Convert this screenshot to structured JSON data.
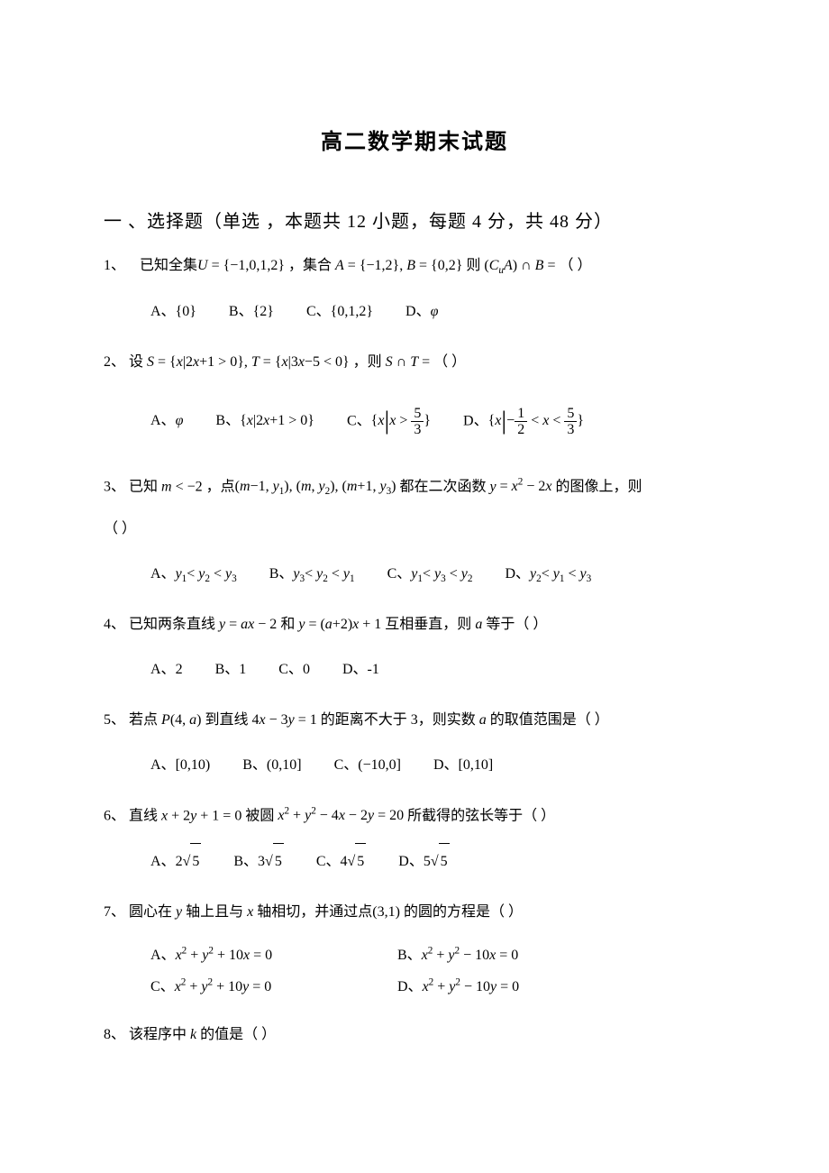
{
  "document": {
    "title": "高二数学期末试题",
    "section_heading": "一 、选择题（单选 ，本题共 12 小题，每题 4 分，共 48 分）",
    "questions": [
      {
        "num": "1、",
        "stem_prefix": "已知全集",
        "stem_math_U": "U = {−1,0,1,2}",
        "stem_mid1": "，集合",
        "stem_math_AB": "A = {−1,2}, B = {0,2}",
        "stem_mid2": " 则 ",
        "stem_math_result": "(CᵤA) ∩ B =",
        "stem_suffix": "（  ）",
        "options": {
          "A": "A、 {0}",
          "B": "B、 {2}",
          "C": "C、 {0,1,2}",
          "D": "D、 φ"
        }
      },
      {
        "num": "2、",
        "stem_prefix": "设 ",
        "stem_math_ST": "S = {x|2x+1 > 0}, T = {x|3x−5 < 0}",
        "stem_mid": "，则 ",
        "stem_math_result": "S ∩ T =",
        "stem_suffix": "（  ）",
        "options": {
          "A": "A、 φ",
          "B": "B、 {x|2x+1 > 0}",
          "C_prefix": "C、 ",
          "C_set": "{x | x > 5/3}",
          "D_prefix": "D、 ",
          "D_set": "{x | −1/2 < x < 5/3}"
        }
      },
      {
        "num": "3、",
        "stem_prefix": "已知 ",
        "stem_math_m": "m < −2",
        "stem_mid1": " ，点",
        "stem_math_points": "(m−1, y₁), (m, y₂), (m+1, y₃)",
        "stem_mid2": " 都在二次函数 ",
        "stem_math_func": "y = x² − 2x",
        "stem_suffix1": " 的图像上，则",
        "stem_suffix2": "（  ）",
        "options": {
          "A": "A、 y₁ < y₂ < y₃",
          "B": "B、 y₃ < y₂ < y₁",
          "C": "C、 y₁ < y₃ < y₂",
          "D": "D、 y₂ < y₁ < y₃"
        }
      },
      {
        "num": "4、",
        "stem_prefix": "已知两条直线 ",
        "stem_math_l1": "y = ax − 2",
        "stem_mid1": " 和 ",
        "stem_math_l2": "y = (a+2)x + 1",
        "stem_mid2": " 互相垂直，则 ",
        "stem_var": "a",
        "stem_suffix": " 等于（  ）",
        "options": {
          "A": "A、 2",
          "B": "B、 1",
          "C": "C、 0",
          "D": "D、 -1"
        }
      },
      {
        "num": "5、",
        "stem_prefix": "若点 ",
        "stem_math_P": "P(4, a)",
        "stem_mid1": " 到直线 ",
        "stem_math_line": "4x − 3y = 1",
        "stem_mid2": " 的距离不大于 3，则实数 ",
        "stem_var": "a",
        "stem_suffix": " 的取值范围是（  ）",
        "options": {
          "A": "A、 [0,10)",
          "B": "B、 (0,10]",
          "C": "C、 (−10,0]",
          "D": "D、 [0,10]"
        }
      },
      {
        "num": "6、",
        "stem_prefix": "直线 ",
        "stem_math_line": "x + 2y + 1 = 0",
        "stem_mid1": " 被圆 ",
        "stem_math_circle": "x² + y² − 4x − 2y = 20",
        "stem_suffix": " 所截得的弦长等于（   ）",
        "options": {
          "A": "A、 2√5",
          "B": "B、 3√5",
          "C": "C、 4√5",
          "D": "D、 5√5"
        }
      },
      {
        "num": "7、",
        "stem_prefix": "圆心在 ",
        "stem_var_y": "y",
        "stem_mid1": " 轴上且与 ",
        "stem_var_x": "x",
        "stem_mid2": " 轴相切，并通过点",
        "stem_math_pt": "(3,1)",
        "stem_suffix": " 的圆的方程是（   ）",
        "options": {
          "A": "A、 x² + y² + 10x = 0",
          "B": "B、 x² + y² − 10x = 0",
          "C": "C、 x² + y² + 10y = 0",
          "D": "D、 x² + y² − 10y = 0"
        }
      },
      {
        "num": "8、",
        "stem_prefix": "该程序中 ",
        "stem_var": "k",
        "stem_suffix": " 的值是（  ）"
      }
    ]
  },
  "style": {
    "background_color": "#ffffff",
    "text_color": "#000000",
    "title_fontsize": 24,
    "heading_fontsize": 20,
    "body_fontsize": 16,
    "font_family": "SimSun",
    "math_font": "Times New Roman"
  }
}
